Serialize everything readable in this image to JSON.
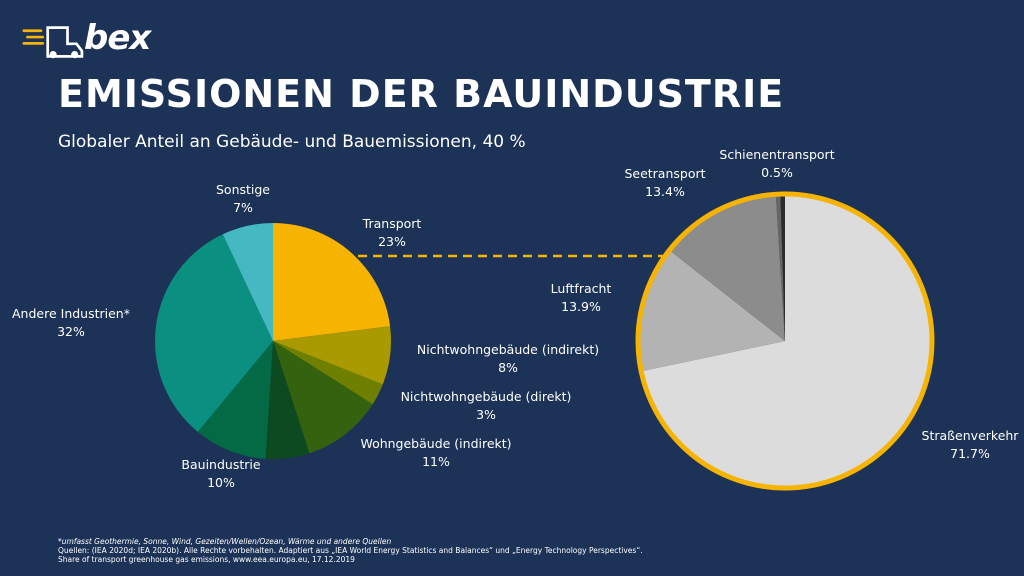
{
  "header": {
    "logo_text": "bex",
    "title": "EMISSIONEN DER BAUINDUSTRIE",
    "subtitle": "Globaler Anteil an Gebäude- und Bauemissionen, 40 %"
  },
  "colors": {
    "background": "#1c3257",
    "accent": "#f6b400"
  },
  "chart_data": [
    {
      "type": "pie",
      "slices": [
        {
          "label": "Transport",
          "value": 23,
          "value_label": "23%",
          "color": "#f6b400"
        },
        {
          "label": "Nichtwohngebäude (indirekt)",
          "value": 8,
          "value_label": "8%",
          "color": "#a89a00"
        },
        {
          "label": "Nichtwohngebäude (direkt)",
          "value": 3,
          "value_label": "3%",
          "color": "#6f7f00"
        },
        {
          "label": "Wohngebäude (indirekt)",
          "value": 11,
          "value_label": "11%",
          "color": "#35620f"
        },
        {
          "label": "",
          "value": 6,
          "value_label": "",
          "color": "#0d4a20"
        },
        {
          "label": "Bauindustrie",
          "value": 10,
          "value_label": "10%",
          "color": "#046a45"
        },
        {
          "label": "Andere Industrien*",
          "value": 32,
          "value_label": "32%",
          "color": "#0b8f80"
        },
        {
          "label": "Sonstige",
          "value": 7,
          "value_label": "7%",
          "color": "#46b8c2"
        }
      ]
    },
    {
      "type": "pie",
      "slices": [
        {
          "label": "Straßenverkehr",
          "value": 71.7,
          "value_label": "71.7%",
          "color": "#dcdcdc"
        },
        {
          "label": "Luftfracht",
          "value": 13.9,
          "value_label": "13.9%",
          "color": "#b3b3b3"
        },
        {
          "label": "Seetransport",
          "value": 13.4,
          "value_label": "13.4%",
          "color": "#8c8c8c"
        },
        {
          "label": "Schienentransport",
          "value": 0.5,
          "value_label": "0.5%",
          "color": "#666666"
        },
        {
          "label": "",
          "value": 0.5,
          "value_label": "",
          "color": "#2c2c2c"
        }
      ]
    }
  ],
  "footer": {
    "note": "*umfasst Geothermie, Sonne, Wind, Gezeiten/Wellen/Ozean, Wärme und andere Quellen",
    "sources": "Quellen: (IEA 2020d; IEA 2020b). Alle Rechte vorbehalten. Adaptiert aus „IEA World Energy Statistics and Balances“ und „Energy Technology Perspectives“.",
    "share": "Share of transport greenhouse gas emissions, www.eea.europa.eu, 17.12.2019"
  }
}
